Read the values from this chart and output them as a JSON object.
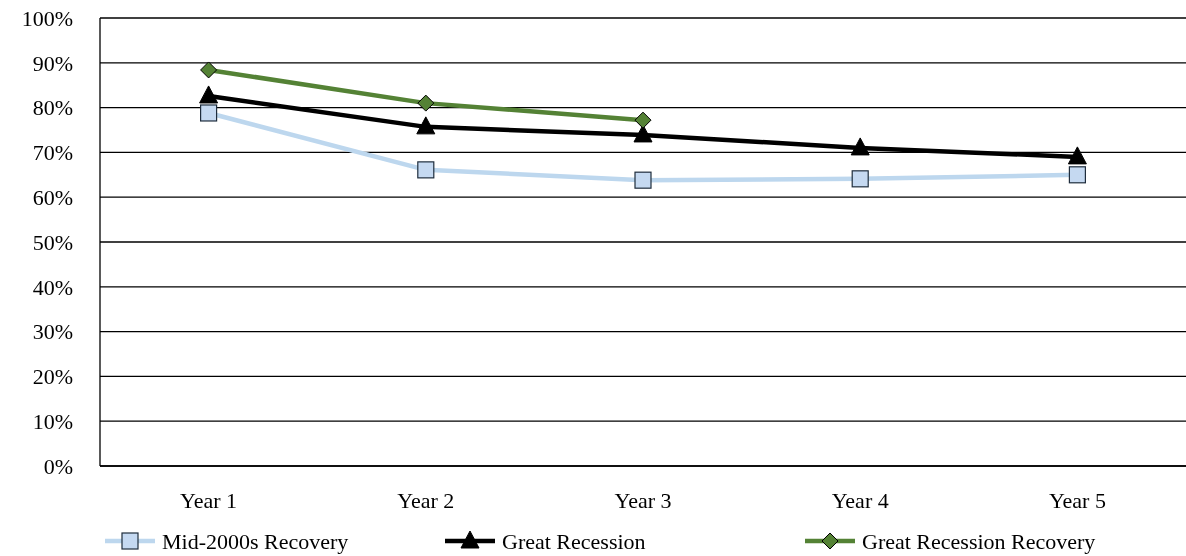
{
  "chart_data": {
    "type": "line",
    "categories": [
      "Year 1",
      "Year 2",
      "Year 3",
      "Year 4",
      "Year 5"
    ],
    "series": [
      {
        "name": "Mid-2000s Recovery",
        "color": "#bdd7ee",
        "marker": "square",
        "values": [
          78.8,
          66.1,
          63.8,
          64.1,
          65.0
        ]
      },
      {
        "name": "Great Recession",
        "color": "#000000",
        "marker": "triangle",
        "values": [
          82.6,
          75.7,
          73.9,
          71.0,
          69.0
        ]
      },
      {
        "name": "Great Recession Recovery",
        "color": "#548235",
        "marker": "diamond",
        "values": [
          88.4,
          81.0,
          77.2,
          null,
          null
        ]
      }
    ],
    "ylim": [
      0,
      100
    ],
    "yticks": [
      {
        "value": 0,
        "label": "0%"
      },
      {
        "value": 10,
        "label": "10%"
      },
      {
        "value": 20,
        "label": "20%"
      },
      {
        "value": 30,
        "label": "30%"
      },
      {
        "value": 40,
        "label": "40%"
      },
      {
        "value": 50,
        "label": "50%"
      },
      {
        "value": 60,
        "label": "60%"
      },
      {
        "value": 70,
        "label": "70%"
      },
      {
        "value": 80,
        "label": "80%"
      },
      {
        "value": 90,
        "label": "90%"
      },
      {
        "value": 100,
        "label": "100%"
      }
    ],
    "grid": "y",
    "legend": "bottom"
  }
}
